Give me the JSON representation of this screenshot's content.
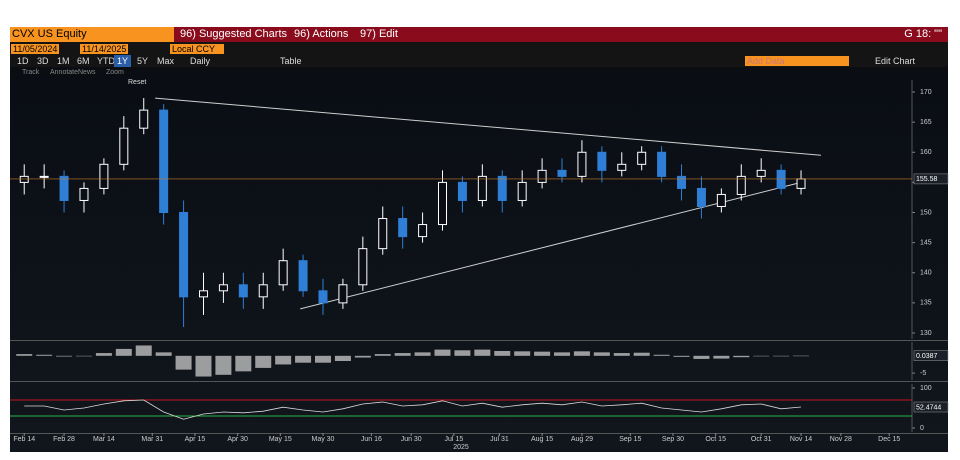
{
  "header": {
    "ticker": "CVX US Equity",
    "menus": [
      "96) Suggested Charts",
      "96) Actions",
      "97) Edit"
    ],
    "page": "G 18: \"\""
  },
  "controls": {
    "start": "11/05/2024",
    "end": "11/14/2025",
    "currency": "Local CCY",
    "periods": [
      "1D",
      "3D",
      "1M",
      "6M",
      "YTD",
      "1Y",
      "5Y",
      "Max"
    ],
    "active_period": "1Y",
    "frequency": "Daily",
    "table": "Table",
    "add_data": "Add Data",
    "edit_chart": "Edit Chart"
  },
  "tools": [
    "Track",
    "Annotate",
    "News",
    "Zoom"
  ],
  "reset": "Reset",
  "chart_data": [
    {
      "type": "candlestick",
      "x": [
        "2025-02-14",
        "2025-02-21",
        "2025-02-28",
        "2025-03-07",
        "2025-03-14",
        "2025-03-21",
        "2025-03-28",
        "2025-04-04",
        "2025-04-11",
        "2025-04-18",
        "2025-04-25",
        "2025-05-02",
        "2025-05-09",
        "2025-05-16",
        "2025-05-23",
        "2025-05-30",
        "2025-06-06",
        "2025-06-13",
        "2025-06-20",
        "2025-06-27",
        "2025-07-04",
        "2025-07-11",
        "2025-07-18",
        "2025-07-25",
        "2025-08-01",
        "2025-08-08",
        "2025-08-15",
        "2025-08-22",
        "2025-08-29",
        "2025-09-05",
        "2025-09-12",
        "2025-09-19",
        "2025-09-26",
        "2025-10-03",
        "2025-10-10",
        "2025-10-17",
        "2025-10-24",
        "2025-10-31",
        "2025-11-07",
        "2025-11-14"
      ],
      "open": [
        155,
        156,
        156,
        152,
        154,
        158,
        164,
        167,
        150,
        136,
        137,
        138,
        136,
        138,
        142,
        137,
        135,
        138,
        144,
        149,
        146,
        148,
        155,
        152,
        156,
        152,
        155,
        157,
        156,
        160,
        157,
        158,
        160,
        156,
        154,
        151,
        153,
        156,
        157,
        154
      ],
      "high": [
        158,
        158,
        157,
        155,
        159,
        166,
        169,
        168,
        152,
        140,
        140,
        140,
        140,
        144,
        143,
        139,
        139,
        146,
        151,
        151,
        150,
        157,
        156,
        158,
        157,
        157,
        159,
        159,
        162,
        161,
        160,
        161,
        161,
        158,
        156,
        154,
        158,
        159,
        158,
        157
      ],
      "low": [
        153,
        154,
        150,
        150,
        153,
        157,
        163,
        148,
        131,
        133,
        135,
        134,
        134,
        137,
        136,
        133,
        134,
        137,
        143,
        144,
        145,
        147,
        150,
        151,
        150,
        151,
        154,
        155,
        155,
        155,
        156,
        157,
        155,
        152,
        149,
        150,
        152,
        155,
        153,
        153
      ],
      "close": [
        156,
        156,
        152,
        154,
        158,
        164,
        167,
        150,
        136,
        137,
        138,
        136,
        138,
        142,
        137,
        135,
        138,
        144,
        149,
        146,
        148,
        155,
        152,
        156,
        152,
        155,
        157,
        156,
        160,
        157,
        158,
        160,
        156,
        154,
        151,
        153,
        156,
        157,
        154,
        155.58
      ],
      "up_color": "#ffffff",
      "down_color": "#2f7fd6",
      "trendlines": [
        {
          "x": [
            "2025-04-01",
            "2025-11-21"
          ],
          "y": [
            169,
            159.5
          ]
        },
        {
          "x": [
            "2025-05-22",
            "2025-11-14"
          ],
          "y": [
            134,
            155
          ]
        }
      ],
      "xlim": [
        "2025-02-09",
        "2025-12-23"
      ],
      "ylim": [
        129,
        172
      ],
      "yticks": [
        130,
        135,
        140,
        145,
        150,
        155,
        160,
        165,
        170
      ]
    },
    {
      "type": "bar",
      "x": [
        "2025-02-14",
        "2025-02-21",
        "2025-02-28",
        "2025-03-07",
        "2025-03-14",
        "2025-03-21",
        "2025-03-28",
        "2025-04-04",
        "2025-04-11",
        "2025-04-18",
        "2025-04-25",
        "2025-05-02",
        "2025-05-09",
        "2025-05-16",
        "2025-05-23",
        "2025-05-30",
        "2025-06-06",
        "2025-06-13",
        "2025-06-20",
        "2025-06-27",
        "2025-07-04",
        "2025-07-11",
        "2025-07-18",
        "2025-07-25",
        "2025-08-01",
        "2025-08-08",
        "2025-08-15",
        "2025-08-22",
        "2025-08-29",
        "2025-09-05",
        "2025-09-12",
        "2025-09-19",
        "2025-09-26",
        "2025-10-03",
        "2025-10-10",
        "2025-10-17",
        "2025-10-24",
        "2025-10-31",
        "2025-11-07",
        "2025-11-14"
      ],
      "values": [
        0.5,
        0.3,
        -0.2,
        0,
        0.8,
        2,
        3,
        1,
        -4,
        -6,
        -5.5,
        -4.5,
        -3.5,
        -2.5,
        -2,
        -2,
        -1.5,
        -0.5,
        0.5,
        0.8,
        1,
        1.8,
        1.6,
        1.8,
        1.4,
        1.3,
        1.2,
        1,
        1.3,
        1,
        0.8,
        0.9,
        0.3,
        -0.3,
        -0.9,
        -0.8,
        -0.4,
        0,
        -0.1,
        0.0387
      ],
      "color": "#bfbfbf",
      "xlim": [
        "2025-02-09",
        "2025-12-23"
      ],
      "ylim": [
        -7,
        4
      ],
      "yticks": [
        -5
      ]
    },
    {
      "type": "line",
      "x": [
        "2025-02-14",
        "2025-02-21",
        "2025-02-28",
        "2025-03-07",
        "2025-03-14",
        "2025-03-21",
        "2025-03-28",
        "2025-04-04",
        "2025-04-11",
        "2025-04-18",
        "2025-04-25",
        "2025-05-02",
        "2025-05-09",
        "2025-05-16",
        "2025-05-23",
        "2025-05-30",
        "2025-06-06",
        "2025-06-13",
        "2025-06-20",
        "2025-06-27",
        "2025-07-04",
        "2025-07-11",
        "2025-07-18",
        "2025-07-25",
        "2025-08-01",
        "2025-08-08",
        "2025-08-15",
        "2025-08-22",
        "2025-08-29",
        "2025-09-05",
        "2025-09-12",
        "2025-09-19",
        "2025-09-26",
        "2025-10-03",
        "2025-10-10",
        "2025-10-17",
        "2025-10-24",
        "2025-10-31",
        "2025-11-07",
        "2025-11-14"
      ],
      "values": [
        55,
        55,
        45,
        50,
        60,
        68,
        70,
        40,
        22,
        35,
        40,
        38,
        42,
        52,
        45,
        40,
        48,
        60,
        65,
        55,
        58,
        68,
        55,
        62,
        52,
        58,
        62,
        58,
        65,
        55,
        58,
        62,
        50,
        45,
        40,
        48,
        58,
        60,
        48,
        52.4744
      ],
      "color": "#d9d9d9",
      "hlines": [
        {
          "value": 70,
          "color": "#c0161e"
        },
        {
          "value": 30,
          "color": "#2bb34a"
        }
      ],
      "xlim": [
        "2025-02-09",
        "2025-12-23"
      ],
      "ylim": [
        -10,
        110
      ],
      "yticks": [
        0,
        100
      ],
      "xticks": [
        {
          "value": "2025-02-14",
          "label": "Feb 14"
        },
        {
          "value": "2025-02-28",
          "label": "Feb 28"
        },
        {
          "value": "2025-03-14",
          "label": "Mar 14"
        },
        {
          "value": "2025-03-31",
          "label": "Mar 31"
        },
        {
          "value": "2025-04-15",
          "label": "Apr 15"
        },
        {
          "value": "2025-04-30",
          "label": "Apr 30"
        },
        {
          "value": "2025-05-15",
          "label": "May 15"
        },
        {
          "value": "2025-05-30",
          "label": "May 30"
        },
        {
          "value": "2025-06-16",
          "label": "Jun 16"
        },
        {
          "value": "2025-06-30",
          "label": "Jun 30"
        },
        {
          "value": "2025-07-15",
          "label": "Jul 15"
        },
        {
          "value": "2025-07-31",
          "label": "Jul 31"
        },
        {
          "value": "2025-08-15",
          "label": "Aug 15"
        },
        {
          "value": "2025-08-29",
          "label": "Aug 29"
        },
        {
          "value": "2025-09-15",
          "label": "Sep 15"
        },
        {
          "value": "2025-09-30",
          "label": "Sep 30"
        },
        {
          "value": "2025-10-15",
          "label": "Oct 15"
        },
        {
          "value": "2025-10-31",
          "label": "Oct 31"
        },
        {
          "value": "2025-11-14",
          "label": "Nov 14"
        },
        {
          "value": "2025-11-28",
          "label": "Nov 28"
        },
        {
          "value": "2025-12-15",
          "label": "Dec 15"
        }
      ],
      "xlabel": "2025"
    }
  ]
}
